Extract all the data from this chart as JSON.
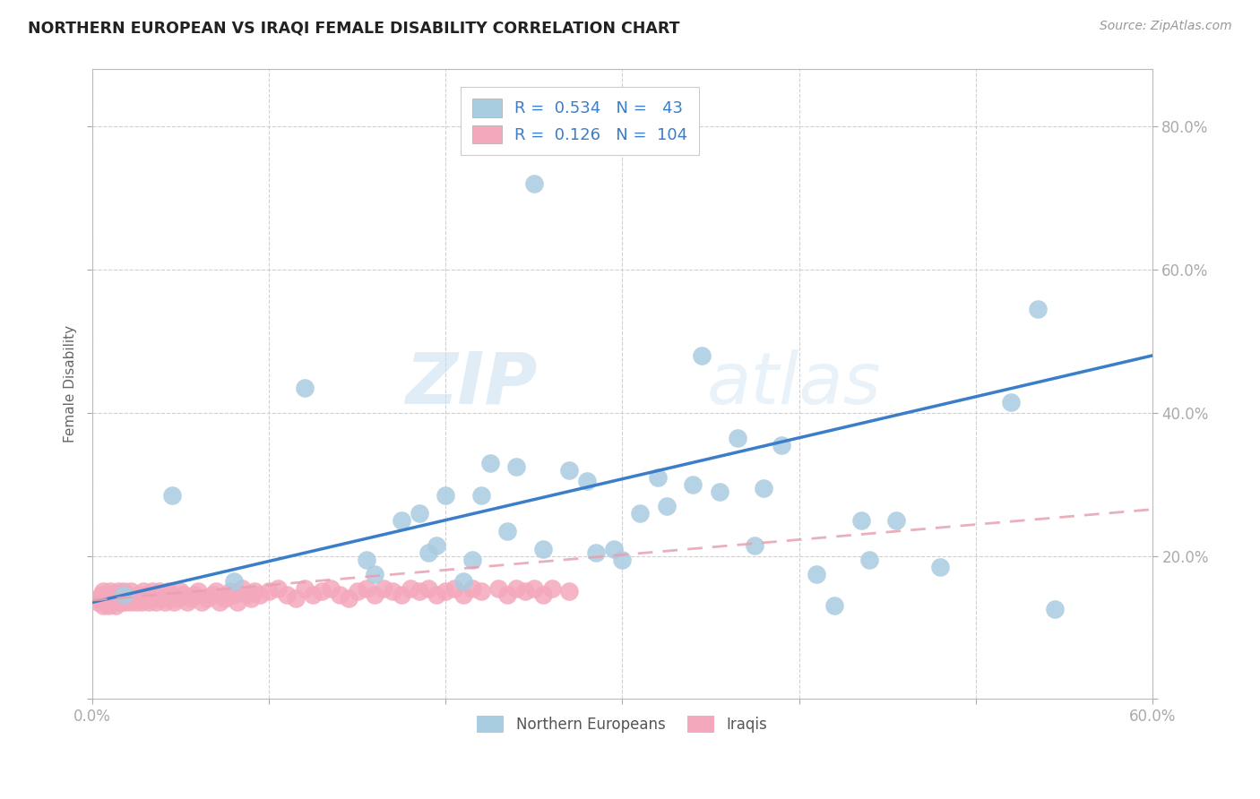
{
  "title": "NORTHERN EUROPEAN VS IRAQI FEMALE DISABILITY CORRELATION CHART",
  "source": "Source: ZipAtlas.com",
  "ylabel": "Female Disability",
  "xlim": [
    0.0,
    0.6
  ],
  "ylim": [
    0.0,
    0.88
  ],
  "xticks": [
    0.0,
    0.1,
    0.2,
    0.3,
    0.4,
    0.5,
    0.6
  ],
  "xtick_labels_show": [
    "0.0%",
    "",
    "",
    "",
    "",
    "",
    "60.0%"
  ],
  "yticks": [
    0.0,
    0.2,
    0.4,
    0.6,
    0.8
  ],
  "ytick_labels": [
    "",
    "20.0%",
    "40.0%",
    "60.0%",
    "80.0%"
  ],
  "background_color": "#ffffff",
  "grid_color": "#cccccc",
  "watermark_zip": "ZIP",
  "watermark_atlas": "atlas",
  "blue_color": "#a8cce0",
  "pink_color": "#f4a8bc",
  "line_blue": "#3a7dc9",
  "line_pink": "#e8a0b0",
  "legend_R_blue": "0.534",
  "legend_N_blue": "43",
  "legend_R_pink": "0.126",
  "legend_N_pink": "104",
  "blue_scatter_x": [
    0.018,
    0.045,
    0.08,
    0.12,
    0.155,
    0.16,
    0.175,
    0.185,
    0.19,
    0.195,
    0.2,
    0.21,
    0.215,
    0.22,
    0.225,
    0.235,
    0.24,
    0.25,
    0.255,
    0.27,
    0.28,
    0.285,
    0.295,
    0.3,
    0.31,
    0.32,
    0.325,
    0.34,
    0.345,
    0.355,
    0.365,
    0.375,
    0.38,
    0.39,
    0.41,
    0.42,
    0.435,
    0.44,
    0.455,
    0.48,
    0.52,
    0.535,
    0.545
  ],
  "blue_scatter_y": [
    0.145,
    0.285,
    0.165,
    0.435,
    0.195,
    0.175,
    0.25,
    0.26,
    0.205,
    0.215,
    0.285,
    0.165,
    0.195,
    0.285,
    0.33,
    0.235,
    0.325,
    0.72,
    0.21,
    0.32,
    0.305,
    0.205,
    0.21,
    0.195,
    0.26,
    0.31,
    0.27,
    0.3,
    0.48,
    0.29,
    0.365,
    0.215,
    0.295,
    0.355,
    0.175,
    0.13,
    0.25,
    0.195,
    0.25,
    0.185,
    0.415,
    0.545,
    0.125
  ],
  "pink_scatter_x": [
    0.003,
    0.004,
    0.005,
    0.006,
    0.006,
    0.007,
    0.008,
    0.009,
    0.009,
    0.01,
    0.01,
    0.011,
    0.012,
    0.013,
    0.013,
    0.014,
    0.015,
    0.015,
    0.016,
    0.016,
    0.017,
    0.018,
    0.018,
    0.019,
    0.02,
    0.021,
    0.022,
    0.022,
    0.023,
    0.025,
    0.026,
    0.027,
    0.028,
    0.029,
    0.03,
    0.031,
    0.032,
    0.033,
    0.034,
    0.035,
    0.036,
    0.037,
    0.038,
    0.039,
    0.04,
    0.041,
    0.042,
    0.043,
    0.045,
    0.046,
    0.048,
    0.05,
    0.052,
    0.054,
    0.056,
    0.058,
    0.06,
    0.062,
    0.065,
    0.068,
    0.07,
    0.072,
    0.075,
    0.078,
    0.08,
    0.082,
    0.085,
    0.088,
    0.09,
    0.092,
    0.095,
    0.1,
    0.105,
    0.11,
    0.115,
    0.12,
    0.125,
    0.13,
    0.135,
    0.14,
    0.145,
    0.15,
    0.155,
    0.16,
    0.165,
    0.17,
    0.175,
    0.18,
    0.185,
    0.19,
    0.195,
    0.2,
    0.205,
    0.21,
    0.215,
    0.22,
    0.23,
    0.235,
    0.24,
    0.245,
    0.25,
    0.255,
    0.26,
    0.27
  ],
  "pink_scatter_y": [
    0.135,
    0.14,
    0.145,
    0.13,
    0.15,
    0.135,
    0.14,
    0.145,
    0.13,
    0.14,
    0.15,
    0.135,
    0.14,
    0.13,
    0.145,
    0.14,
    0.135,
    0.15,
    0.14,
    0.145,
    0.135,
    0.15,
    0.14,
    0.135,
    0.145,
    0.14,
    0.135,
    0.15,
    0.14,
    0.135,
    0.145,
    0.14,
    0.135,
    0.15,
    0.14,
    0.145,
    0.135,
    0.14,
    0.15,
    0.145,
    0.135,
    0.14,
    0.15,
    0.14,
    0.145,
    0.135,
    0.14,
    0.15,
    0.145,
    0.135,
    0.14,
    0.15,
    0.145,
    0.135,
    0.14,
    0.145,
    0.15,
    0.135,
    0.14,
    0.145,
    0.15,
    0.135,
    0.14,
    0.15,
    0.145,
    0.135,
    0.155,
    0.145,
    0.14,
    0.15,
    0.145,
    0.15,
    0.155,
    0.145,
    0.14,
    0.155,
    0.145,
    0.15,
    0.155,
    0.145,
    0.14,
    0.15,
    0.155,
    0.145,
    0.155,
    0.15,
    0.145,
    0.155,
    0.15,
    0.155,
    0.145,
    0.15,
    0.155,
    0.145,
    0.155,
    0.15,
    0.155,
    0.145,
    0.155,
    0.15,
    0.155,
    0.145,
    0.155,
    0.15
  ],
  "blue_line_x": [
    0.0,
    0.6
  ],
  "blue_line_y": [
    0.135,
    0.48
  ],
  "pink_line_x": [
    0.0,
    0.6
  ],
  "pink_line_y": [
    0.138,
    0.265
  ]
}
